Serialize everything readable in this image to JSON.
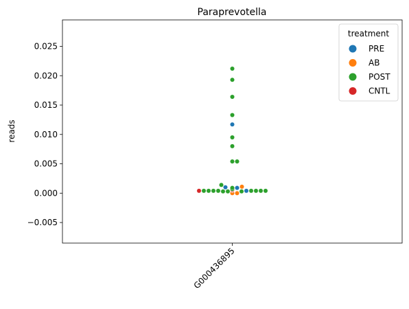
{
  "chart_data": {
    "type": "scatter",
    "subtype": "swarm",
    "title": "Paraprevotella",
    "xlabel": "",
    "ylabel": "reads",
    "categories": [
      "G000436895"
    ],
    "ylim": [
      -0.0085,
      0.0295
    ],
    "yticks": [
      -0.005,
      0.0,
      0.005,
      0.01,
      0.015,
      0.02,
      0.025
    ],
    "yticklabels": [
      "−0.005",
      "0.000",
      "0.005",
      "0.010",
      "0.015",
      "0.020",
      "0.025"
    ],
    "xtick_rotation": 45,
    "grid": false,
    "legend": {
      "title": "treatment",
      "position": "top-right"
    },
    "series": [
      {
        "name": "PRE",
        "color": "#1f77b4",
        "points": [
          {
            "x": 0,
            "y": 0.0117
          },
          {
            "x": 0,
            "y": 0.001
          },
          {
            "x": 0,
            "y": 0.0009
          },
          {
            "x": 0,
            "y": 0.0006
          },
          {
            "x": 0,
            "y": 0.0006
          },
          {
            "x": 0,
            "y": 0.0006
          },
          {
            "x": 0,
            "y": 0.0004
          }
        ]
      },
      {
        "name": "AB",
        "color": "#ff7f0e",
        "points": [
          {
            "x": 0,
            "y": 0.0011
          },
          {
            "x": 0,
            "y": 0.0
          },
          {
            "x": 0,
            "y": 0.0
          }
        ]
      },
      {
        "name": "POST",
        "color": "#2ca02c",
        "points": [
          {
            "x": 0,
            "y": 0.0212
          },
          {
            "x": 0,
            "y": 0.0193
          },
          {
            "x": 0,
            "y": 0.0164
          },
          {
            "x": 0,
            "y": 0.0133
          },
          {
            "x": 0,
            "y": 0.0095
          },
          {
            "x": 0,
            "y": 0.008
          },
          {
            "x": 0,
            "y": 0.0054
          },
          {
            "x": 0,
            "y": 0.0054
          },
          {
            "x": 0,
            "y": 0.0014
          },
          {
            "x": 0,
            "y": 0.0009
          },
          {
            "x": 0,
            "y": 0.0007
          },
          {
            "x": 0,
            "y": 0.0006
          },
          {
            "x": 0,
            "y": 0.0006
          },
          {
            "x": 0,
            "y": 0.0005
          },
          {
            "x": 0,
            "y": 0.0005
          },
          {
            "x": 0,
            "y": 0.0005
          },
          {
            "x": 0,
            "y": 0.0005
          },
          {
            "x": 0,
            "y": 0.0005
          },
          {
            "x": 0,
            "y": 0.0005
          },
          {
            "x": 0,
            "y": 0.0004
          },
          {
            "x": 0,
            "y": 0.0004
          },
          {
            "x": 0,
            "y": 0.0004
          },
          {
            "x": 0,
            "y": 0.0004
          },
          {
            "x": 0,
            "y": 0.0004
          },
          {
            "x": 0,
            "y": 0.0004
          },
          {
            "x": 0,
            "y": 0.0004
          },
          {
            "x": 0,
            "y": 0.0004
          },
          {
            "x": 0,
            "y": 0.0003
          },
          {
            "x": 0,
            "y": 0.0003
          },
          {
            "x": 0,
            "y": 0.0003
          }
        ]
      },
      {
        "name": "CNTL",
        "color": "#d62728",
        "points": [
          {
            "x": 0,
            "y": 0.0006
          },
          {
            "x": 0,
            "y": 0.0005
          },
          {
            "x": 0,
            "y": 0.0005
          },
          {
            "x": 0,
            "y": 0.0005
          },
          {
            "x": 0,
            "y": 0.0004
          }
        ]
      }
    ]
  }
}
